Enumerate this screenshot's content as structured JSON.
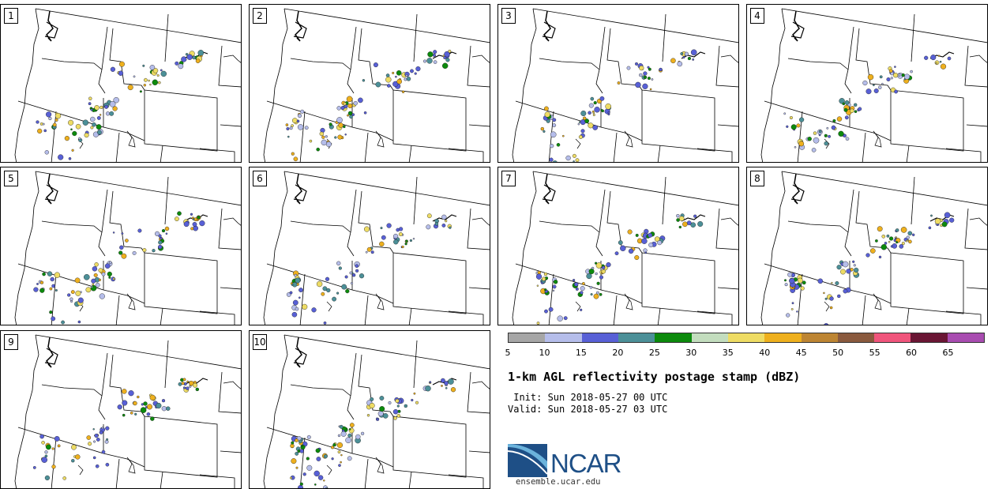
{
  "figure": {
    "title": "1-km AGL reflectivity postage stamp (dBZ)",
    "init_line": " Init: Sun 2018-05-27 00 UTC",
    "valid_line": "Valid: Sun 2018-05-27 03 UTC",
    "logo_text": "NCAR",
    "url": "ensemble.ucar.edu"
  },
  "members": [
    {
      "label": "1"
    },
    {
      "label": "2"
    },
    {
      "label": "3"
    },
    {
      "label": "4"
    },
    {
      "label": "5"
    },
    {
      "label": "6"
    },
    {
      "label": "7"
    },
    {
      "label": "8"
    },
    {
      "label": "9"
    },
    {
      "label": "10"
    }
  ],
  "colorbar": {
    "units": "dBZ",
    "colors": [
      "#a6a6a6",
      "#b5bdea",
      "#5860d6",
      "#4c9098",
      "#0c8a0c",
      "#c3ddbe",
      "#eedc64",
      "#eeb01e",
      "#bd8533",
      "#8a5a3e",
      "#f0557c",
      "#6a1634",
      "#a84cb0"
    ],
    "tick_labels": [
      "5",
      "10",
      "15",
      "20",
      "25",
      "30",
      "35",
      "40",
      "45",
      "50",
      "55",
      "60",
      "65"
    ]
  },
  "logo_colors": {
    "primary": "#1e4f86",
    "light": "#6bb3dc"
  }
}
